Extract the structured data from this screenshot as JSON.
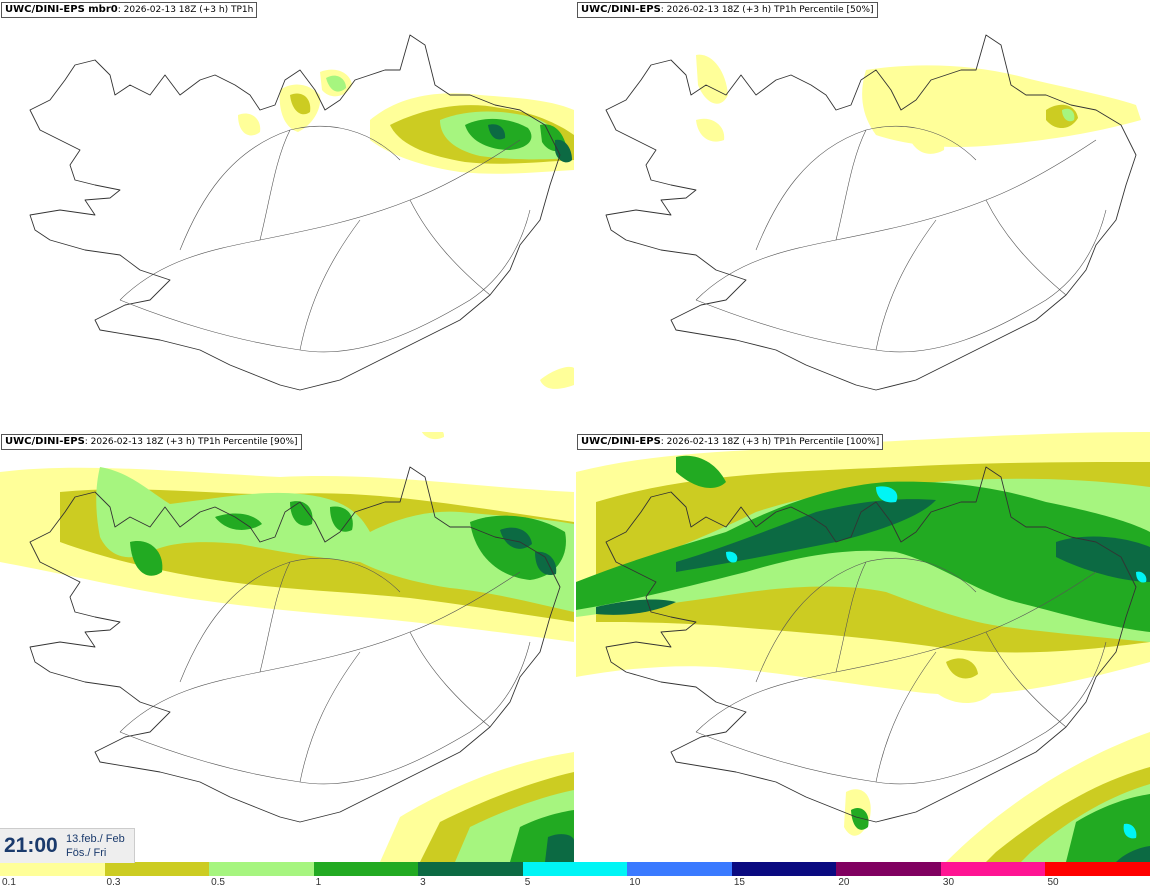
{
  "panels": [
    {
      "model": "UWC/DINI-EPS mbr0",
      "subtitle": ": 2026-02-13 18Z (+3 h) TP1h"
    },
    {
      "model": "UWC/DINI-EPS",
      "subtitle": ": 2026-02-13 18Z (+3 h) TP1h Percentile [50%]"
    },
    {
      "model": "UWC/DINI-EPS",
      "subtitle": ": 2026-02-13 18Z (+3 h) TP1h Percentile [90%]"
    },
    {
      "model": "UWC/DINI-EPS",
      "subtitle": ": 2026-02-13 18Z (+3 h) TP1h Percentile [100%]"
    }
  ],
  "timebox": {
    "time": "21:00",
    "date_line1": "13.feb./ Feb",
    "date_line2": "Fös./ Fri"
  },
  "legend": {
    "ticks": [
      "0.1",
      "0.3",
      "0.5",
      "1",
      "3",
      "5",
      "10",
      "15",
      "20",
      "30",
      "50"
    ],
    "colors": [
      "#ffff99",
      "#cccc22",
      "#a6f57f",
      "#22aa22",
      "#0c6a43",
      "#00f5f5",
      "#3a7aff",
      "#0a0a80",
      "#800060",
      "#ff1493",
      "#ff0000"
    ]
  },
  "colors": {
    "light_yellow": "#ffff99",
    "olive": "#cccc22",
    "light_green": "#a6f57f",
    "green": "#22aa22",
    "dark_green": "#0c6a43",
    "cyan": "#00f5f5",
    "coastline": "#333333"
  }
}
